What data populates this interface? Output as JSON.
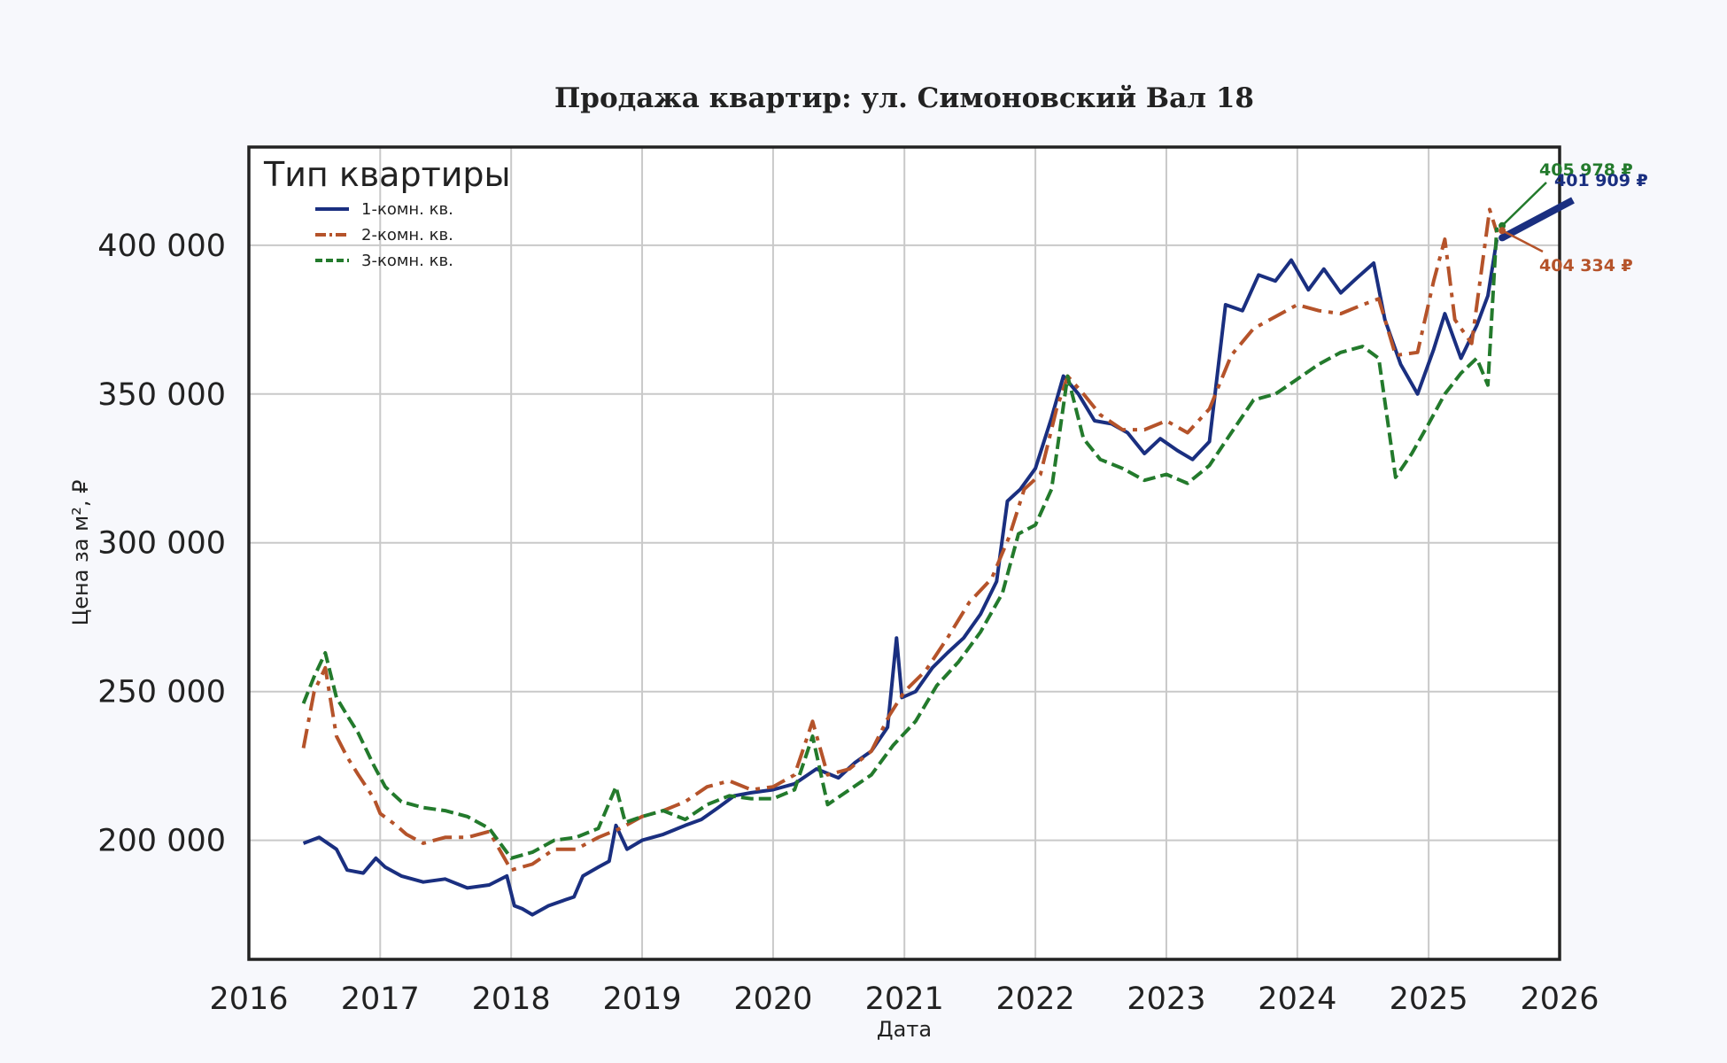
{
  "chart_data": {
    "type": "line",
    "title": "Продажа квартир: ул. Симоновский Вал 18",
    "xlabel": "Дата",
    "ylabel": "Цена за м², ₽",
    "xlim": [
      "2016-01-01",
      "2026-01-01"
    ],
    "ylim": [
      160000,
      433000
    ],
    "x_ticks": [
      "2016",
      "2017",
      "2018",
      "2019",
      "2020",
      "2021",
      "2022",
      "2023",
      "2024",
      "2025",
      "2026"
    ],
    "y_ticks": [
      {
        "value": 200000,
        "label": "200 000"
      },
      {
        "value": 250000,
        "label": "250 000"
      },
      {
        "value": 300000,
        "label": "300 000"
      },
      {
        "value": 350000,
        "label": "350 000"
      },
      {
        "value": 400000,
        "label": "400 000"
      }
    ],
    "grid": true,
    "legend": {
      "title": "Тип квартиры",
      "placement": "top-left"
    },
    "series": [
      {
        "name": "1-комн. кв.",
        "color": "#1a2f80",
        "style": "solid",
        "points": [
          [
            "2016-06-01",
            199000
          ],
          [
            "2016-07-15",
            201000
          ],
          [
            "2016-09-01",
            197000
          ],
          [
            "2016-10-01",
            190000
          ],
          [
            "2016-11-15",
            189000
          ],
          [
            "2016-12-20",
            194000
          ],
          [
            "2017-01-15",
            191000
          ],
          [
            "2017-03-01",
            188000
          ],
          [
            "2017-05-01",
            186000
          ],
          [
            "2017-07-01",
            187000
          ],
          [
            "2017-09-01",
            184000
          ],
          [
            "2017-11-01",
            185000
          ],
          [
            "2017-12-20",
            188000
          ],
          [
            "2018-01-10",
            178000
          ],
          [
            "2018-02-01",
            177000
          ],
          [
            "2018-03-01",
            175000
          ],
          [
            "2018-04-15",
            178000
          ],
          [
            "2018-06-01",
            180000
          ],
          [
            "2018-06-25",
            181000
          ],
          [
            "2018-07-20",
            188000
          ],
          [
            "2018-09-01",
            191000
          ],
          [
            "2018-10-01",
            193000
          ],
          [
            "2018-10-20",
            205000
          ],
          [
            "2018-11-20",
            197000
          ],
          [
            "2019-01-01",
            200000
          ],
          [
            "2019-03-01",
            202000
          ],
          [
            "2019-05-01",
            205000
          ],
          [
            "2019-06-15",
            207000
          ],
          [
            "2019-08-01",
            211000
          ],
          [
            "2019-09-15",
            215000
          ],
          [
            "2019-11-01",
            216000
          ],
          [
            "2020-01-01",
            217000
          ],
          [
            "2020-03-01",
            219000
          ],
          [
            "2020-05-01",
            224000
          ],
          [
            "2020-07-01",
            221000
          ],
          [
            "2020-08-15",
            226000
          ],
          [
            "2020-10-01",
            230000
          ],
          [
            "2020-11-15",
            238000
          ],
          [
            "2020-12-10",
            268000
          ],
          [
            "2020-12-25",
            248000
          ],
          [
            "2021-02-01",
            250000
          ],
          [
            "2021-03-20",
            258000
          ],
          [
            "2021-05-01",
            263000
          ],
          [
            "2021-06-15",
            268000
          ],
          [
            "2021-08-01",
            276000
          ],
          [
            "2021-09-15",
            287000
          ],
          [
            "2021-10-15",
            314000
          ],
          [
            "2021-11-20",
            318000
          ],
          [
            "2022-01-01",
            325000
          ],
          [
            "2022-02-15",
            342000
          ],
          [
            "2022-03-20",
            356000
          ],
          [
            "2022-05-01",
            350000
          ],
          [
            "2022-06-15",
            341000
          ],
          [
            "2022-08-01",
            340000
          ],
          [
            "2022-09-15",
            337000
          ],
          [
            "2022-11-01",
            330000
          ],
          [
            "2022-12-15",
            335000
          ],
          [
            "2023-02-01",
            331000
          ],
          [
            "2023-03-15",
            328000
          ],
          [
            "2023-05-01",
            334000
          ],
          [
            "2023-06-15",
            380000
          ],
          [
            "2023-08-01",
            378000
          ],
          [
            "2023-09-15",
            390000
          ],
          [
            "2023-11-01",
            388000
          ],
          [
            "2023-12-15",
            395000
          ],
          [
            "2024-02-01",
            385000
          ],
          [
            "2024-03-15",
            392000
          ],
          [
            "2024-05-01",
            384000
          ],
          [
            "2024-06-15",
            389000
          ],
          [
            "2024-08-01",
            394000
          ],
          [
            "2024-09-01",
            375000
          ],
          [
            "2024-10-15",
            360000
          ],
          [
            "2024-12-01",
            350000
          ],
          [
            "2025-01-15",
            365000
          ],
          [
            "2025-02-15",
            377000
          ],
          [
            "2025-04-01",
            362000
          ],
          [
            "2025-05-15",
            373000
          ],
          [
            "2025-06-15",
            383000
          ],
          [
            "2025-07-10",
            401909
          ]
        ]
      },
      {
        "name": "2-комн. кв.",
        "color": "#b5532a",
        "style": "dashdot",
        "points": [
          [
            "2016-06-01",
            231000
          ],
          [
            "2016-07-01",
            250000
          ],
          [
            "2016-08-01",
            258000
          ],
          [
            "2016-09-01",
            235000
          ],
          [
            "2016-10-01",
            228000
          ],
          [
            "2016-11-01",
            222000
          ],
          [
            "2016-12-15",
            214000
          ],
          [
            "2017-01-01",
            209000
          ],
          [
            "2017-02-15",
            205000
          ],
          [
            "2017-03-15",
            202000
          ],
          [
            "2017-05-01",
            199000
          ],
          [
            "2017-07-01",
            201000
          ],
          [
            "2017-09-01",
            201000
          ],
          [
            "2017-11-01",
            203000
          ],
          [
            "2018-01-01",
            190000
          ],
          [
            "2018-03-01",
            192000
          ],
          [
            "2018-05-01",
            197000
          ],
          [
            "2018-07-01",
            197000
          ],
          [
            "2018-09-01",
            201000
          ],
          [
            "2018-11-01",
            204000
          ],
          [
            "2019-01-01",
            208000
          ],
          [
            "2019-03-01",
            210000
          ],
          [
            "2019-05-01",
            213000
          ],
          [
            "2019-07-01",
            218000
          ],
          [
            "2019-09-01",
            220000
          ],
          [
            "2019-11-01",
            217000
          ],
          [
            "2020-01-01",
            218000
          ],
          [
            "2020-03-01",
            222000
          ],
          [
            "2020-04-20",
            240000
          ],
          [
            "2020-06-01",
            222000
          ],
          [
            "2020-08-01",
            224000
          ],
          [
            "2020-10-01",
            230000
          ],
          [
            "2020-11-20",
            242000
          ],
          [
            "2021-01-01",
            250000
          ],
          [
            "2021-03-01",
            257000
          ],
          [
            "2021-05-01",
            268000
          ],
          [
            "2021-07-01",
            280000
          ],
          [
            "2021-09-01",
            288000
          ],
          [
            "2021-10-20",
            302000
          ],
          [
            "2021-12-01",
            318000
          ],
          [
            "2022-01-15",
            323000
          ],
          [
            "2022-03-01",
            345000
          ],
          [
            "2022-04-01",
            356000
          ],
          [
            "2022-05-15",
            350000
          ],
          [
            "2022-07-01",
            343000
          ],
          [
            "2022-09-01",
            338000
          ],
          [
            "2022-11-01",
            338000
          ],
          [
            "2023-01-01",
            341000
          ],
          [
            "2023-03-01",
            337000
          ],
          [
            "2023-05-01",
            345000
          ],
          [
            "2023-07-01",
            363000
          ],
          [
            "2023-09-01",
            372000
          ],
          [
            "2023-11-01",
            376000
          ],
          [
            "2024-01-01",
            380000
          ],
          [
            "2024-03-01",
            378000
          ],
          [
            "2024-05-01",
            377000
          ],
          [
            "2024-07-01",
            380000
          ],
          [
            "2024-08-15",
            382000
          ],
          [
            "2024-10-01",
            363000
          ],
          [
            "2024-12-01",
            364000
          ],
          [
            "2025-01-15",
            388000
          ],
          [
            "2025-02-15",
            402000
          ],
          [
            "2025-03-15",
            375000
          ],
          [
            "2025-05-01",
            367000
          ],
          [
            "2025-06-20",
            412000
          ],
          [
            "2025-07-10",
            404334
          ]
        ]
      },
      {
        "name": "3-комн. кв.",
        "color": "#237a2c",
        "style": "dashed",
        "points": [
          [
            "2016-06-01",
            246000
          ],
          [
            "2016-07-01",
            255000
          ],
          [
            "2016-08-01",
            263000
          ],
          [
            "2016-09-01",
            248000
          ],
          [
            "2016-10-01",
            242000
          ],
          [
            "2016-11-01",
            236000
          ],
          [
            "2016-12-15",
            225000
          ],
          [
            "2017-01-15",
            218000
          ],
          [
            "2017-03-01",
            213000
          ],
          [
            "2017-05-01",
            211000
          ],
          [
            "2017-07-01",
            210000
          ],
          [
            "2017-09-01",
            208000
          ],
          [
            "2017-11-01",
            204000
          ],
          [
            "2018-01-01",
            194000
          ],
          [
            "2018-03-01",
            196000
          ],
          [
            "2018-05-01",
            200000
          ],
          [
            "2018-07-01",
            201000
          ],
          [
            "2018-09-01",
            204000
          ],
          [
            "2018-10-20",
            218000
          ],
          [
            "2018-11-15",
            206000
          ],
          [
            "2019-01-01",
            208000
          ],
          [
            "2019-03-01",
            210000
          ],
          [
            "2019-05-01",
            207000
          ],
          [
            "2019-07-01",
            212000
          ],
          [
            "2019-09-01",
            215000
          ],
          [
            "2019-11-01",
            214000
          ],
          [
            "2020-01-01",
            214000
          ],
          [
            "2020-03-01",
            217000
          ],
          [
            "2020-04-20",
            235000
          ],
          [
            "2020-06-01",
            212000
          ],
          [
            "2020-08-01",
            217000
          ],
          [
            "2020-10-01",
            222000
          ],
          [
            "2020-12-01",
            232000
          ],
          [
            "2021-02-01",
            240000
          ],
          [
            "2021-04-01",
            252000
          ],
          [
            "2021-06-01",
            260000
          ],
          [
            "2021-08-01",
            270000
          ],
          [
            "2021-10-01",
            283000
          ],
          [
            "2021-11-15",
            303000
          ],
          [
            "2022-01-01",
            306000
          ],
          [
            "2022-02-15",
            318000
          ],
          [
            "2022-04-01",
            356000
          ],
          [
            "2022-05-15",
            335000
          ],
          [
            "2022-07-01",
            328000
          ],
          [
            "2022-09-01",
            325000
          ],
          [
            "2022-11-01",
            321000
          ],
          [
            "2023-01-01",
            323000
          ],
          [
            "2023-03-01",
            320000
          ],
          [
            "2023-05-01",
            326000
          ],
          [
            "2023-07-01",
            337000
          ],
          [
            "2023-09-01",
            348000
          ],
          [
            "2023-11-01",
            350000
          ],
          [
            "2024-01-01",
            355000
          ],
          [
            "2024-03-01",
            360000
          ],
          [
            "2024-05-01",
            364000
          ],
          [
            "2024-07-01",
            366000
          ],
          [
            "2024-08-15",
            362000
          ],
          [
            "2024-10-01",
            322000
          ],
          [
            "2024-11-15",
            330000
          ],
          [
            "2025-01-01",
            340000
          ],
          [
            "2025-02-15",
            350000
          ],
          [
            "2025-04-01",
            357000
          ],
          [
            "2025-05-15",
            362000
          ],
          [
            "2025-06-15",
            353000
          ],
          [
            "2025-07-10",
            405978
          ]
        ]
      }
    ],
    "annotations": [
      {
        "series": 2,
        "text": "405 978 ₽",
        "color": "#237a2c"
      },
      {
        "series": 0,
        "text": "401 909 ₽",
        "color": "#1a2f80"
      },
      {
        "series": 1,
        "text": "404 334 ₽",
        "color": "#b5532a"
      }
    ]
  }
}
